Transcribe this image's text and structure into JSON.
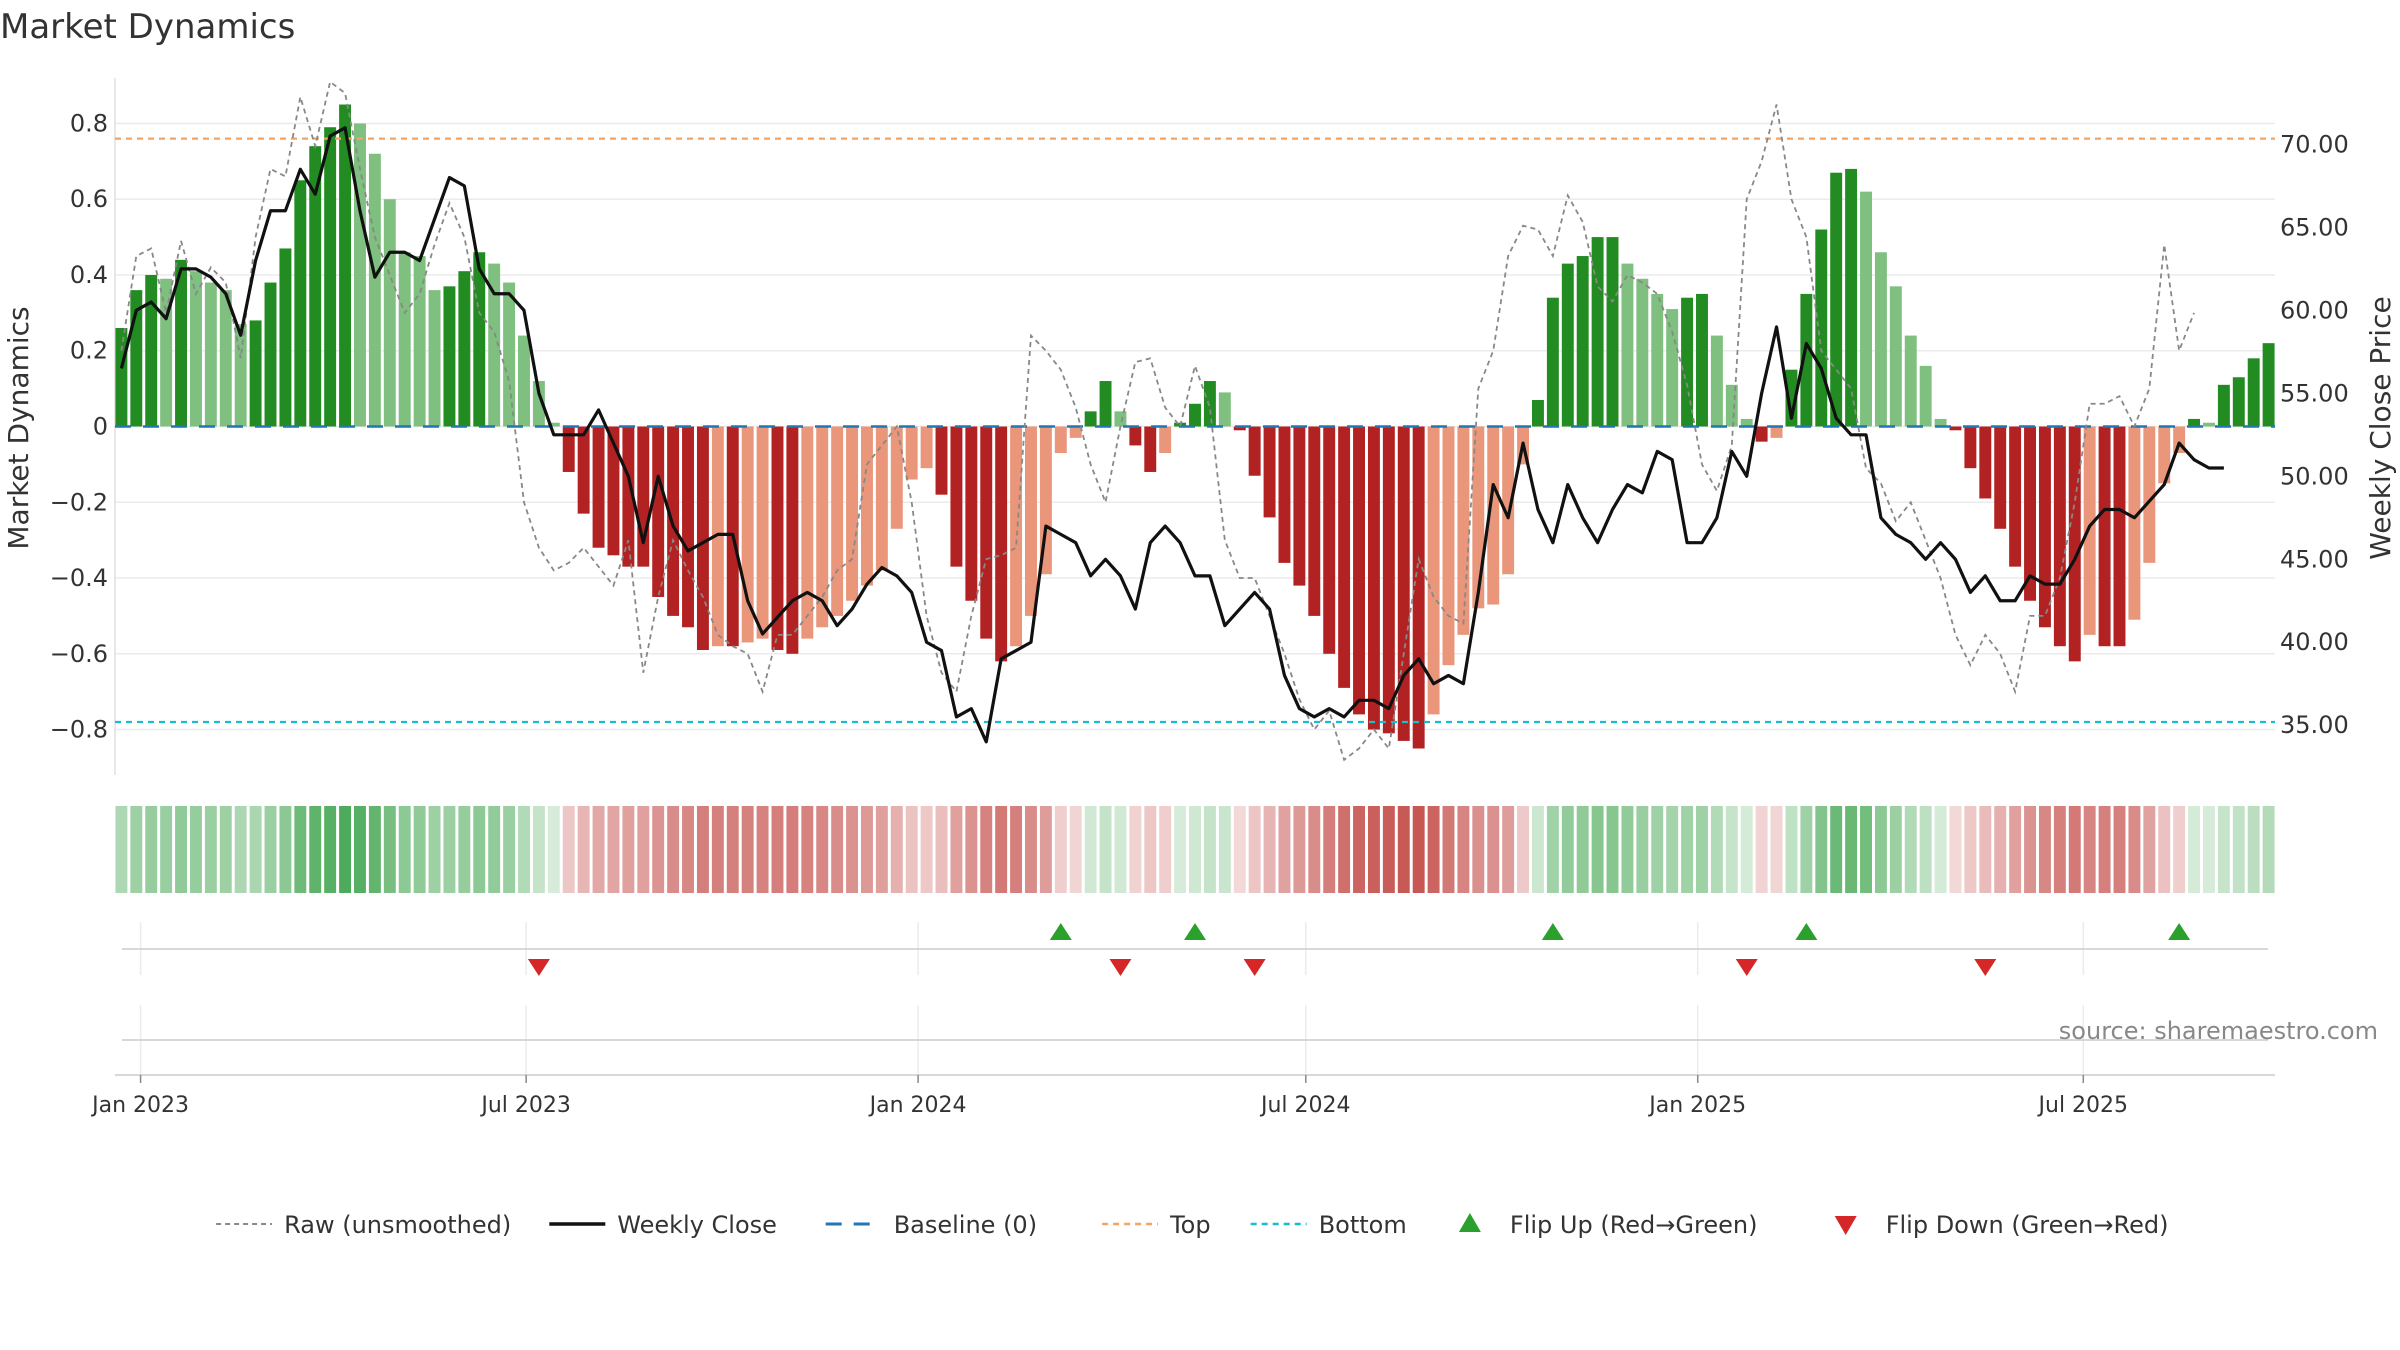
{
  "title": "Market Dynamics",
  "source": "source: sharemaestro.com",
  "chart_data": {
    "type": "bar",
    "title": "Market Dynamics",
    "ylabel_left": "Market Dynamics",
    "ylabel_right": "Weekly Close Price",
    "ylim_left": [
      -0.92,
      0.92
    ],
    "ylim_right": [
      32.0,
      74.0
    ],
    "yticks_left": [
      {
        "v": 0.8,
        "label": "0.8"
      },
      {
        "v": 0.6,
        "label": "0.6"
      },
      {
        "v": 0.4,
        "label": "0.4"
      },
      {
        "v": 0.2,
        "label": "0.2"
      },
      {
        "v": 0,
        "label": "0"
      },
      {
        "v": -0.2,
        "label": "−0.2"
      },
      {
        "v": -0.4,
        "label": "−0.4"
      },
      {
        "v": -0.6,
        "label": "−0.6"
      },
      {
        "v": -0.8,
        "label": "−0.8"
      }
    ],
    "yticks_right": [
      {
        "v": 70,
        "label": "70.00"
      },
      {
        "v": 65,
        "label": "65.00"
      },
      {
        "v": 60,
        "label": "60.00"
      },
      {
        "v": 55,
        "label": "55.00"
      },
      {
        "v": 50,
        "label": "50.00"
      },
      {
        "v": 45,
        "label": "45.00"
      },
      {
        "v": 40,
        "label": "40.00"
      },
      {
        "v": 35,
        "label": "35.00"
      }
    ],
    "x_start": "2022-12-23",
    "x_step_days": 7,
    "xticks": [
      {
        "date": "2023-01-01",
        "label": "Jan 2023"
      },
      {
        "date": "2023-07-01",
        "label": "Jul 2023"
      },
      {
        "date": "2024-01-01",
        "label": "Jan 2024"
      },
      {
        "date": "2024-07-01",
        "label": "Jul 2024"
      },
      {
        "date": "2025-01-01",
        "label": "Jan 2025"
      },
      {
        "date": "2025-07-01",
        "label": "Jul 2025"
      }
    ],
    "baseline": 0,
    "top_line": 0.76,
    "bottom_line": -0.78,
    "colors": {
      "pos_strong": "#228b22",
      "pos_weak": "#7fbf7f",
      "neg_strong": "#b22222",
      "neg_weak": "#e9967a",
      "weekly_close": "#111111",
      "raw": "#888888",
      "baseline": "#1f77b4",
      "top": "#f4a460",
      "bottom": "#17becf",
      "flip_up": "#2ca02c",
      "flip_down": "#d62728"
    },
    "series": [
      {
        "name": "Market Dynamics",
        "values": [
          0.26,
          0.36,
          0.4,
          0.39,
          0.44,
          0.41,
          0.38,
          0.36,
          0.27,
          0.28,
          0.38,
          0.47,
          0.65,
          0.74,
          0.79,
          0.85,
          0.8,
          0.72,
          0.6,
          0.46,
          0.45,
          0.36,
          0.37,
          0.41,
          0.46,
          0.43,
          0.38,
          0.24,
          0.12,
          0.01,
          -0.12,
          -0.23,
          -0.32,
          -0.34,
          -0.37,
          -0.37,
          -0.45,
          -0.5,
          -0.53,
          -0.59,
          -0.58,
          -0.58,
          -0.57,
          -0.56,
          -0.59,
          -0.6,
          -0.56,
          -0.53,
          -0.5,
          -0.46,
          -0.42,
          -0.38,
          -0.27,
          -0.14,
          -0.11,
          -0.18,
          -0.37,
          -0.46,
          -0.56,
          -0.62,
          -0.58,
          -0.5,
          -0.39,
          -0.07,
          -0.03,
          0.04,
          0.12,
          0.04,
          -0.05,
          -0.12,
          -0.07,
          0.01,
          0.06,
          0.12,
          0.09,
          -0.01,
          -0.13,
          -0.24,
          -0.36,
          -0.42,
          -0.5,
          -0.6,
          -0.69,
          -0.76,
          -0.8,
          -0.81,
          -0.83,
          -0.85,
          -0.76,
          -0.63,
          -0.55,
          -0.48,
          -0.47,
          -0.39,
          -0.1,
          0.07,
          0.34,
          0.43,
          0.45,
          0.5,
          0.5,
          0.43,
          0.39,
          0.35,
          0.31,
          0.34,
          0.35,
          0.24,
          0.11,
          0.02,
          -0.04,
          -0.03,
          0.15,
          0.35,
          0.52,
          0.67,
          0.68,
          0.62,
          0.46,
          0.37,
          0.24,
          0.16,
          0.02,
          -0.01,
          -0.11,
          -0.19,
          -0.27,
          -0.37,
          -0.46,
          -0.53,
          -0.58,
          -0.62,
          -0.55,
          -0.58,
          -0.58,
          -0.51,
          -0.36,
          -0.15,
          -0.07,
          0.02,
          0.01,
          0.11,
          0.13,
          0.18,
          0.22
        ]
      },
      {
        "name": "Weekly Close",
        "values": [
          56.5,
          60.0,
          60.5,
          59.5,
          62.5,
          62.5,
          62.0,
          61.0,
          58.5,
          63.0,
          66.0,
          66.0,
          68.5,
          67.0,
          70.5,
          71.0,
          66.0,
          62.0,
          63.5,
          63.5,
          63.0,
          65.5,
          68.0,
          67.5,
          62.5,
          61.0,
          61.0,
          60.0,
          55.0,
          52.5,
          52.5,
          52.5,
          54.0,
          52.0,
          50.0,
          46.0,
          50.0,
          47.0,
          45.5,
          46.0,
          46.5,
          46.5,
          42.5,
          40.5,
          41.5,
          42.5,
          43.0,
          42.5,
          41.0,
          42.0,
          43.5,
          44.5,
          44.0,
          43.0,
          40.0,
          39.5,
          35.5,
          36.0,
          34.0,
          39.0,
          39.5,
          40.0,
          47.0,
          46.5,
          46.0,
          44.0,
          45.0,
          44.0,
          42.0,
          46.0,
          47.0,
          46.0,
          44.0,
          44.0,
          41.0,
          42.0,
          43.0,
          42.0,
          38.0,
          36.0,
          35.5,
          36.0,
          35.5,
          36.5,
          36.5,
          36.0,
          38.0,
          39.0,
          37.5,
          38.0,
          37.5,
          43.0,
          49.5,
          47.5,
          52.0,
          48.0,
          46.0,
          49.5,
          47.5,
          46.0,
          48.0,
          49.5,
          49.0,
          51.5,
          51.0,
          46.0,
          46.0,
          47.5,
          51.5,
          50.0,
          55.0,
          59.0,
          53.5,
          58.0,
          56.5,
          53.5,
          52.5,
          52.5,
          47.5,
          46.5,
          46.0,
          45.0,
          46.0,
          45.0,
          43.0,
          44.0,
          42.5,
          42.5,
          44.0,
          43.5,
          43.5,
          45.0,
          47.0,
          48.0,
          48.0,
          47.5,
          48.5,
          49.5,
          52.0,
          51.0,
          50.5,
          50.5
        ]
      },
      {
        "name": "Raw (unsmoothed)",
        "values": [
          0.2,
          0.45,
          0.47,
          0.3,
          0.49,
          0.35,
          0.42,
          0.38,
          0.18,
          0.5,
          0.68,
          0.66,
          0.87,
          0.74,
          0.91,
          0.88,
          0.68,
          0.5,
          0.4,
          0.3,
          0.35,
          0.48,
          0.59,
          0.5,
          0.3,
          0.25,
          0.12,
          -0.2,
          -0.32,
          -0.38,
          -0.36,
          -0.32,
          -0.37,
          -0.42,
          -0.3,
          -0.65,
          -0.45,
          -0.3,
          -0.38,
          -0.45,
          -0.55,
          -0.58,
          -0.6,
          -0.7,
          -0.55,
          -0.55,
          -0.5,
          -0.45,
          -0.38,
          -0.35,
          -0.1,
          -0.05,
          0.0,
          -0.2,
          -0.5,
          -0.65,
          -0.7,
          -0.5,
          -0.35,
          -0.34,
          -0.32,
          0.24,
          0.2,
          0.15,
          0.05,
          -0.1,
          -0.2,
          0.0,
          0.17,
          0.18,
          0.05,
          0.0,
          0.16,
          0.05,
          -0.3,
          -0.4,
          -0.4,
          -0.5,
          -0.6,
          -0.72,
          -0.8,
          -0.75,
          -0.88,
          -0.85,
          -0.8,
          -0.85,
          -0.6,
          -0.35,
          -0.45,
          -0.5,
          -0.52,
          0.1,
          0.2,
          0.45,
          0.53,
          0.52,
          0.45,
          0.61,
          0.54,
          0.37,
          0.33,
          0.4,
          0.38,
          0.35,
          0.25,
          0.11,
          -0.1,
          -0.17,
          -0.05,
          0.6,
          0.7,
          0.85,
          0.6,
          0.5,
          0.2,
          0.15,
          0.1,
          -0.11,
          -0.15,
          -0.25,
          -0.2,
          -0.3,
          -0.4,
          -0.55,
          -0.63,
          -0.55,
          -0.6,
          -0.7,
          -0.5,
          -0.5,
          -0.4,
          -0.2,
          0.06,
          0.06,
          0.08,
          0.0,
          0.1,
          0.48,
          0.2,
          0.3
        ]
      },
      {
        "name": "Baseline (0)"
      },
      {
        "name": "Top"
      },
      {
        "name": "Bottom"
      },
      {
        "name": "Flip Up (Red→Green)",
        "dates": [
          "2024-03-08",
          "2024-05-10",
          "2024-10-25",
          "2025-02-21",
          "2025-08-15"
        ]
      },
      {
        "name": "Flip Down (Green→Red)",
        "dates": [
          "2023-07-07",
          "2024-04-05",
          "2024-06-07",
          "2025-01-24",
          "2025-05-16"
        ]
      }
    ],
    "legend_position": "bottom",
    "grid": true
  }
}
